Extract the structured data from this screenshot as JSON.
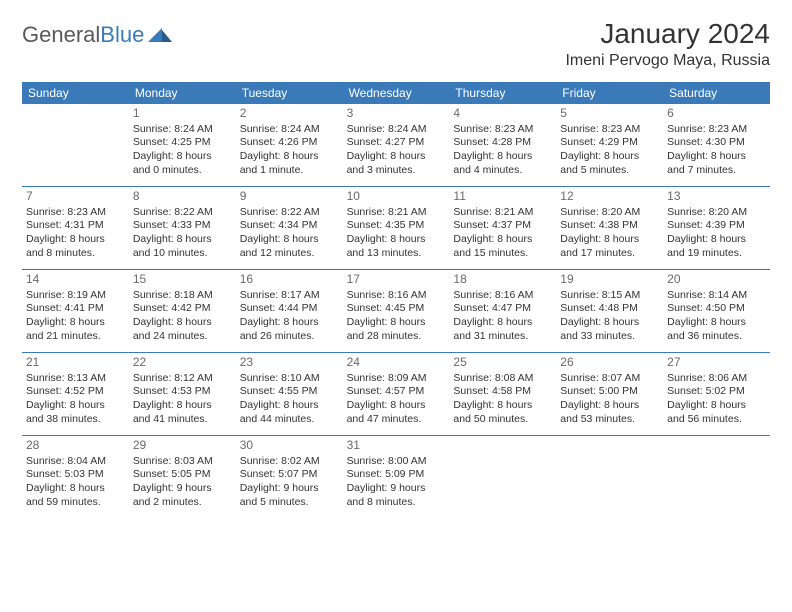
{
  "logo": {
    "word1": "General",
    "word2": "Blue"
  },
  "title": "January 2024",
  "location": "Imeni Pervogo Maya, Russia",
  "day_names": [
    "Sunday",
    "Monday",
    "Tuesday",
    "Wednesday",
    "Thursday",
    "Friday",
    "Saturday"
  ],
  "colors": {
    "header_bg": "#3a7ab8",
    "header_text": "#ffffff",
    "border": "#3a7ab8",
    "text": "#333333",
    "daynum": "#6a6a6a",
    "logo_gray": "#5a5a5a",
    "logo_blue": "#3a7ab8",
    "background": "#ffffff"
  },
  "fonts": {
    "family": "Arial",
    "title_size_pt": 21,
    "location_size_pt": 12,
    "dayheader_size_pt": 9,
    "cell_size_pt": 8,
    "daynum_size_pt": 9
  },
  "weeks": [
    [
      {
        "empty": true
      },
      {
        "n": "1",
        "sr": "Sunrise: 8:24 AM",
        "ss": "Sunset: 4:25 PM",
        "d1": "Daylight: 8 hours",
        "d2": "and 0 minutes."
      },
      {
        "n": "2",
        "sr": "Sunrise: 8:24 AM",
        "ss": "Sunset: 4:26 PM",
        "d1": "Daylight: 8 hours",
        "d2": "and 1 minute."
      },
      {
        "n": "3",
        "sr": "Sunrise: 8:24 AM",
        "ss": "Sunset: 4:27 PM",
        "d1": "Daylight: 8 hours",
        "d2": "and 3 minutes."
      },
      {
        "n": "4",
        "sr": "Sunrise: 8:23 AM",
        "ss": "Sunset: 4:28 PM",
        "d1": "Daylight: 8 hours",
        "d2": "and 4 minutes."
      },
      {
        "n": "5",
        "sr": "Sunrise: 8:23 AM",
        "ss": "Sunset: 4:29 PM",
        "d1": "Daylight: 8 hours",
        "d2": "and 5 minutes."
      },
      {
        "n": "6",
        "sr": "Sunrise: 8:23 AM",
        "ss": "Sunset: 4:30 PM",
        "d1": "Daylight: 8 hours",
        "d2": "and 7 minutes."
      }
    ],
    [
      {
        "n": "7",
        "sr": "Sunrise: 8:23 AM",
        "ss": "Sunset: 4:31 PM",
        "d1": "Daylight: 8 hours",
        "d2": "and 8 minutes."
      },
      {
        "n": "8",
        "sr": "Sunrise: 8:22 AM",
        "ss": "Sunset: 4:33 PM",
        "d1": "Daylight: 8 hours",
        "d2": "and 10 minutes."
      },
      {
        "n": "9",
        "sr": "Sunrise: 8:22 AM",
        "ss": "Sunset: 4:34 PM",
        "d1": "Daylight: 8 hours",
        "d2": "and 12 minutes."
      },
      {
        "n": "10",
        "sr": "Sunrise: 8:21 AM",
        "ss": "Sunset: 4:35 PM",
        "d1": "Daylight: 8 hours",
        "d2": "and 13 minutes."
      },
      {
        "n": "11",
        "sr": "Sunrise: 8:21 AM",
        "ss": "Sunset: 4:37 PM",
        "d1": "Daylight: 8 hours",
        "d2": "and 15 minutes."
      },
      {
        "n": "12",
        "sr": "Sunrise: 8:20 AM",
        "ss": "Sunset: 4:38 PM",
        "d1": "Daylight: 8 hours",
        "d2": "and 17 minutes."
      },
      {
        "n": "13",
        "sr": "Sunrise: 8:20 AM",
        "ss": "Sunset: 4:39 PM",
        "d1": "Daylight: 8 hours",
        "d2": "and 19 minutes."
      }
    ],
    [
      {
        "n": "14",
        "sr": "Sunrise: 8:19 AM",
        "ss": "Sunset: 4:41 PM",
        "d1": "Daylight: 8 hours",
        "d2": "and 21 minutes."
      },
      {
        "n": "15",
        "sr": "Sunrise: 8:18 AM",
        "ss": "Sunset: 4:42 PM",
        "d1": "Daylight: 8 hours",
        "d2": "and 24 minutes."
      },
      {
        "n": "16",
        "sr": "Sunrise: 8:17 AM",
        "ss": "Sunset: 4:44 PM",
        "d1": "Daylight: 8 hours",
        "d2": "and 26 minutes."
      },
      {
        "n": "17",
        "sr": "Sunrise: 8:16 AM",
        "ss": "Sunset: 4:45 PM",
        "d1": "Daylight: 8 hours",
        "d2": "and 28 minutes."
      },
      {
        "n": "18",
        "sr": "Sunrise: 8:16 AM",
        "ss": "Sunset: 4:47 PM",
        "d1": "Daylight: 8 hours",
        "d2": "and 31 minutes."
      },
      {
        "n": "19",
        "sr": "Sunrise: 8:15 AM",
        "ss": "Sunset: 4:48 PM",
        "d1": "Daylight: 8 hours",
        "d2": "and 33 minutes."
      },
      {
        "n": "20",
        "sr": "Sunrise: 8:14 AM",
        "ss": "Sunset: 4:50 PM",
        "d1": "Daylight: 8 hours",
        "d2": "and 36 minutes."
      }
    ],
    [
      {
        "n": "21",
        "sr": "Sunrise: 8:13 AM",
        "ss": "Sunset: 4:52 PM",
        "d1": "Daylight: 8 hours",
        "d2": "and 38 minutes."
      },
      {
        "n": "22",
        "sr": "Sunrise: 8:12 AM",
        "ss": "Sunset: 4:53 PM",
        "d1": "Daylight: 8 hours",
        "d2": "and 41 minutes."
      },
      {
        "n": "23",
        "sr": "Sunrise: 8:10 AM",
        "ss": "Sunset: 4:55 PM",
        "d1": "Daylight: 8 hours",
        "d2": "and 44 minutes."
      },
      {
        "n": "24",
        "sr": "Sunrise: 8:09 AM",
        "ss": "Sunset: 4:57 PM",
        "d1": "Daylight: 8 hours",
        "d2": "and 47 minutes."
      },
      {
        "n": "25",
        "sr": "Sunrise: 8:08 AM",
        "ss": "Sunset: 4:58 PM",
        "d1": "Daylight: 8 hours",
        "d2": "and 50 minutes."
      },
      {
        "n": "26",
        "sr": "Sunrise: 8:07 AM",
        "ss": "Sunset: 5:00 PM",
        "d1": "Daylight: 8 hours",
        "d2": "and 53 minutes."
      },
      {
        "n": "27",
        "sr": "Sunrise: 8:06 AM",
        "ss": "Sunset: 5:02 PM",
        "d1": "Daylight: 8 hours",
        "d2": "and 56 minutes."
      }
    ],
    [
      {
        "n": "28",
        "sr": "Sunrise: 8:04 AM",
        "ss": "Sunset: 5:03 PM",
        "d1": "Daylight: 8 hours",
        "d2": "and 59 minutes."
      },
      {
        "n": "29",
        "sr": "Sunrise: 8:03 AM",
        "ss": "Sunset: 5:05 PM",
        "d1": "Daylight: 9 hours",
        "d2": "and 2 minutes."
      },
      {
        "n": "30",
        "sr": "Sunrise: 8:02 AM",
        "ss": "Sunset: 5:07 PM",
        "d1": "Daylight: 9 hours",
        "d2": "and 5 minutes."
      },
      {
        "n": "31",
        "sr": "Sunrise: 8:00 AM",
        "ss": "Sunset: 5:09 PM",
        "d1": "Daylight: 9 hours",
        "d2": "and 8 minutes."
      },
      {
        "empty": true
      },
      {
        "empty": true
      },
      {
        "empty": true
      }
    ]
  ]
}
